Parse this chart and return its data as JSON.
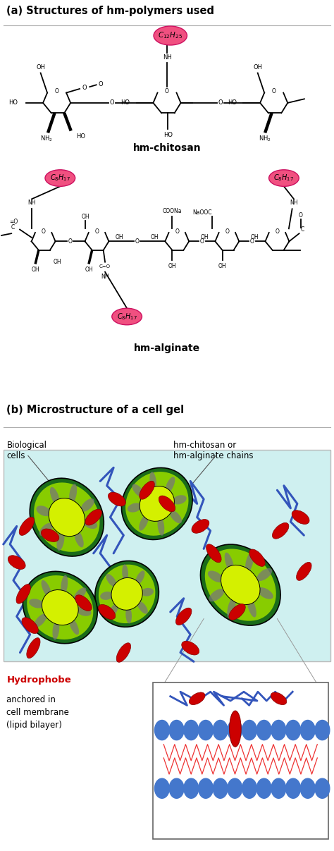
{
  "panel_a_title": "(a) Structures of hm-polymers used",
  "panel_b_title": "(b) Microstructure of a cell gel",
  "hm_chitosan_label": "hm-chitosan",
  "hm_alginate_label": "hm-alginate",
  "hydrophobe_label_red": "Hydrophobe",
  "hydrophobe_label_black": "anchored in\ncell membrane\n(lipid bilayer)",
  "bio_cells_label": "Biological\ncells",
  "chains_label": "hm-chitosan or\nhm-alginate chains",
  "c12h25_label": "$C_{12}H_{25}$",
  "c8h17_label": "$C_8H_{17}$",
  "pink_fill": "#f05080",
  "pink_edge": "#cc1060",
  "cell_dark_green": "#1a6b1a",
  "cell_bright_green": "#88cc00",
  "cell_nucleus_color": "#d4f000",
  "cell_gray": "#888888",
  "chain_color": "#3355bb",
  "hydrophobe_color": "#cc0000",
  "hydrophobe_edge": "#880000",
  "bg_gel": "#cff0f0",
  "bg_white": "#ffffff",
  "sep_color": "#aaaaaa",
  "inset_edge": "#666666",
  "circle_color": "#4477cc",
  "fig_width": 4.74,
  "fig_height": 12.07,
  "fig_dpi": 100
}
